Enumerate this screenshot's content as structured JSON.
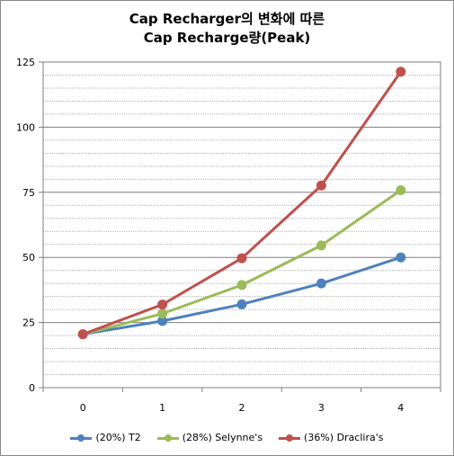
{
  "chart_data": {
    "type": "line",
    "title_lines": [
      "Cap Recharger의 변화에 따른",
      "Cap Recharge량(Peak)"
    ],
    "xlabel": "",
    "ylabel": "",
    "categories": [
      "0",
      "1",
      "2",
      "3",
      "4"
    ],
    "ylim": [
      0,
      125
    ],
    "yticks": [
      "0",
      "25",
      "50",
      "75",
      "100",
      "125"
    ],
    "grid": true,
    "legend_position": "bottom",
    "series": [
      {
        "name": "(20%) T2",
        "color": "#4f81bd",
        "values": [
          20.5,
          25.6,
          32.0,
          40.0,
          50.0
        ]
      },
      {
        "name": "(28%) Selynne's",
        "color": "#9bbb59",
        "values": [
          20.5,
          28.4,
          39.4,
          54.6,
          75.8
        ]
      },
      {
        "name": "(36%) Draclira's",
        "color": "#c0504d",
        "values": [
          20.5,
          31.9,
          49.7,
          77.6,
          121.3
        ]
      }
    ]
  }
}
